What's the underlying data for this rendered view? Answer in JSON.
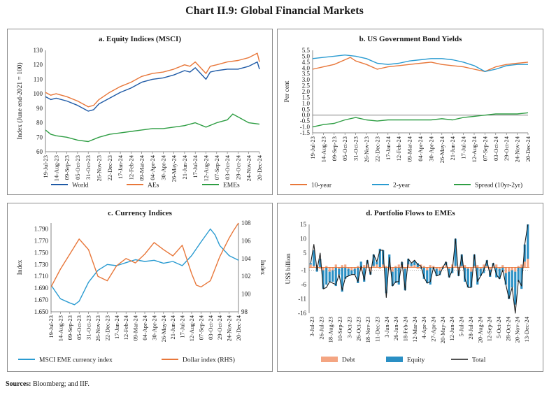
{
  "page_title": "Chart II.9: Global Financial Markets",
  "source_label": "Sources:",
  "source_text": "Bloomberg; and IIF.",
  "chart_data": [
    {
      "id": "a",
      "type": "line",
      "title": "a. Equity Indices (MSCI)",
      "ylabel": "Index (June end-2021 = 100)",
      "ylim": [
        60,
        130
      ],
      "yticks": [
        60,
        70,
        80,
        90,
        100,
        110,
        120,
        130
      ],
      "x_tick_labels": [
        "19-Jul-23",
        "14-Aug-23",
        "09-Sep-23",
        "05-Oct-23",
        "31-Oct-23",
        "26-Nov-23",
        "22-Dec-23",
        "17-Jan-24",
        "12-Feb-24",
        "09-Mar-24",
        "04-Apr-24",
        "30-Apr-24",
        "26-May-24",
        "21-Jun-24",
        "17-Jul-24",
        "12-Aug-24",
        "07-Sep-24",
        "03-Oct-24",
        "29-Oct-24",
        "24-Nov-24",
        "20-Dec-24"
      ],
      "x_range": [
        0,
        20
      ],
      "series": [
        {
          "name": "World",
          "color": "#1f5aa6",
          "x": [
            0,
            0.5,
            1,
            2,
            3,
            4,
            4.5,
            5,
            6,
            7,
            8,
            9,
            10,
            11,
            12,
            13,
            13.5,
            14,
            15,
            15.4,
            16,
            17,
            18,
            19,
            19.8,
            20
          ],
          "values": [
            98,
            96,
            97,
            95,
            92,
            88,
            89,
            93,
            97,
            101,
            104,
            108,
            110,
            111,
            113,
            116,
            115,
            118,
            110,
            115,
            116,
            117,
            117,
            119,
            122,
            117
          ]
        },
        {
          "name": "AEs",
          "color": "#e8773a",
          "x": [
            0,
            0.5,
            1,
            2,
            3,
            4,
            4.5,
            5,
            6,
            7,
            8,
            9,
            10,
            11,
            12,
            13,
            13.5,
            14,
            15,
            15.4,
            16,
            17,
            18,
            19,
            19.8,
            20
          ],
          "values": [
            101,
            99,
            100,
            98,
            95,
            91,
            92,
            96,
            101,
            105,
            108,
            112,
            114,
            115,
            117,
            120,
            119,
            122,
            114,
            119,
            120,
            122,
            123,
            125,
            128,
            122
          ]
        },
        {
          "name": "EMEs",
          "color": "#2f9e44",
          "x": [
            0,
            0.5,
            1,
            2,
            3,
            4,
            5,
            6,
            7,
            8,
            9,
            10,
            11,
            12,
            13,
            14,
            15,
            16,
            17,
            17.5,
            18,
            19,
            20
          ],
          "values": [
            75,
            72,
            71,
            70,
            68,
            67,
            70,
            72,
            73,
            74,
            75,
            76,
            76,
            77,
            78,
            80,
            77,
            80,
            82,
            86,
            84,
            80,
            79
          ]
        }
      ]
    },
    {
      "id": "b",
      "type": "line",
      "title": "b. US Government Bond Yields",
      "ylabel": "Per cent",
      "ylim": [
        -1.5,
        5.5
      ],
      "yticks": [
        -1.5,
        -1.0,
        -0.5,
        0.0,
        0.5,
        1.0,
        1.5,
        2.0,
        2.5,
        3.0,
        3.5,
        4.0,
        4.5,
        5.0,
        5.5
      ],
      "x_tick_labels": [
        "19-Jul-23",
        "14-Aug-23",
        "09-Sep-23",
        "05-Oct-23",
        "31-Oct-23",
        "26-Nov-23",
        "22-Dec-23",
        "17-Jan-24",
        "12-Feb-24",
        "09-Mar-24",
        "04-Apr-24",
        "30-Apr-24",
        "26-May-24",
        "21-Jun-24",
        "17-Jul-24",
        "12-Aug-24",
        "07-Sep-24",
        "03-Oct-24",
        "29-Oct-24",
        "24-Nov-24",
        "20-Dec-24"
      ],
      "x_range": [
        0,
        20
      ],
      "series": [
        {
          "name": "10-year",
          "color": "#e8773a",
          "x": [
            0,
            1,
            2,
            3,
            3.5,
            4,
            5,
            6,
            7,
            8,
            9,
            10,
            11,
            12,
            13,
            14,
            15,
            16,
            17,
            18,
            19,
            20
          ],
          "values": [
            3.9,
            4.1,
            4.3,
            4.7,
            4.9,
            4.6,
            4.3,
            3.9,
            4.1,
            4.2,
            4.3,
            4.4,
            4.5,
            4.3,
            4.2,
            4.1,
            3.9,
            3.7,
            4.1,
            4.3,
            4.4,
            4.5
          ]
        },
        {
          "name": "2-year",
          "color": "#2a9bd1",
          "x": [
            0,
            1,
            2,
            3,
            4,
            5,
            6,
            7,
            8,
            9,
            10,
            11,
            12,
            13,
            14,
            15,
            16,
            17,
            18,
            19,
            20
          ],
          "values": [
            4.8,
            4.9,
            5.0,
            5.1,
            5.0,
            4.8,
            4.4,
            4.3,
            4.4,
            4.6,
            4.7,
            4.8,
            4.8,
            4.7,
            4.5,
            4.2,
            3.7,
            3.9,
            4.2,
            4.3,
            4.3
          ]
        },
        {
          "name": "Spread (10yr-2yr)",
          "color": "#2f9e44",
          "x": [
            0,
            1,
            2,
            3,
            4,
            5,
            6,
            7,
            8,
            9,
            10,
            11,
            12,
            13,
            14,
            15,
            16,
            17,
            18,
            19,
            20
          ],
          "values": [
            -1.0,
            -0.8,
            -0.7,
            -0.4,
            -0.2,
            -0.4,
            -0.5,
            -0.4,
            -0.4,
            -0.4,
            -0.4,
            -0.4,
            -0.3,
            -0.4,
            -0.2,
            -0.1,
            0.0,
            0.1,
            0.1,
            0.1,
            0.2
          ]
        }
      ]
    },
    {
      "id": "c",
      "type": "line",
      "title": "c. Currency Indices",
      "ylabel": "Index",
      "y2label": "Index",
      "ylim": [
        1.65,
        1.8
      ],
      "yticks": [
        1.65,
        1.67,
        1.69,
        1.71,
        1.73,
        1.75,
        1.77,
        1.79
      ],
      "y_tick_labels": [
        "1.650",
        "1.670",
        "1.690",
        "1.710",
        "1.730",
        "1.750",
        "1.770",
        "1.790"
      ],
      "y2lim": [
        98,
        108
      ],
      "y2ticks": [
        98,
        100,
        102,
        104,
        106,
        108
      ],
      "x_tick_labels": [
        "19-Jul-23",
        "14-Aug-23",
        "09-Sep-23",
        "05-Oct-23",
        "31-Oct-23",
        "26-Nov-23",
        "22-Dec-23",
        "17-Jan-24",
        "12-Feb-24",
        "09-Mar-24",
        "04-Apr-24",
        "30-Apr-24",
        "26-May-24",
        "21-Jun-24",
        "17-Jul-24",
        "12-Aug-24",
        "07-Sep-24",
        "03-Oct-24",
        "29-Oct-24",
        "24-Nov-24",
        "20-Dec-24"
      ],
      "x_range": [
        0,
        20
      ],
      "series": [
        {
          "name": "MSCI EME currency index",
          "color": "#2a9bd1",
          "axis": "left",
          "x": [
            0,
            1,
            2,
            2.5,
            3,
            4,
            5,
            6,
            7,
            8,
            9,
            10,
            11,
            12,
            13,
            14,
            15,
            16,
            17,
            17.5,
            18,
            19,
            20
          ],
          "values": [
            1.695,
            1.672,
            1.665,
            1.662,
            1.668,
            1.7,
            1.72,
            1.73,
            1.728,
            1.733,
            1.738,
            1.735,
            1.737,
            1.732,
            1.735,
            1.728,
            1.745,
            1.768,
            1.79,
            1.78,
            1.762,
            1.745,
            1.737
          ]
        },
        {
          "name": "Dollar index (RHS)",
          "color": "#e8773a",
          "axis": "right",
          "x": [
            0,
            1,
            2,
            3,
            4,
            5,
            6,
            7,
            8,
            9,
            10,
            11,
            12,
            13,
            14,
            15,
            15.5,
            16,
            17,
            18,
            19,
            19.5,
            20
          ],
          "values": [
            100.8,
            102.8,
            104.5,
            106.2,
            105.0,
            102.0,
            101.5,
            103.2,
            104.0,
            103.5,
            104.5,
            105.8,
            105.0,
            104.3,
            105.5,
            102.3,
            101.0,
            100.8,
            101.5,
            104.2,
            106.3,
            107.2,
            108.0
          ]
        }
      ]
    },
    {
      "id": "d",
      "type": "bar",
      "title": "d. Portfolio Flows to EMEs",
      "ylabel": "US$ billion",
      "ylim": [
        -16,
        15
      ],
      "yticks": [
        -16,
        -11,
        -6,
        -1,
        5,
        10,
        15
      ],
      "x_tick_labels": [
        "3-Jul-23",
        "26-Jul-23",
        "18-Aug-23",
        "10-Sep-23",
        "3-Oct-23",
        "26-Oct-23",
        "18-Nov-23",
        "11-Dec-23",
        "3-Jan-24",
        "26-Jan-24",
        "18-Feb-24",
        "12-Mar-24",
        "4-Apr-24",
        "27-Apr-24",
        "20-May-24",
        "12-Jun-24",
        "5-Jul-24",
        "28-Jul-24",
        "20-Aug-24",
        "12-Sep-24",
        "5-Oct-24",
        "28-Oct-24",
        "20-Nov-24",
        "13-Dec-24"
      ],
      "series": [
        {
          "name": "Debt",
          "color": "#f4a582",
          "values": [
            1.0,
            0.5,
            0.8,
            -0.5,
            -1.0,
            0.5,
            -1.5,
            -1.0,
            1.0,
            -0.5,
            0.8,
            1.0,
            -0.5,
            -1.0,
            -0.5,
            0.5,
            -1.2,
            0.8,
            1.0,
            -1.5,
            0.5,
            1.0,
            -0.5,
            1.0,
            0.5,
            -0.8,
            -1.5,
            0.5,
            1.0,
            0.8,
            -0.5,
            1.0,
            0.5,
            0.8,
            -0.5,
            1.0,
            0.5,
            -1.0,
            0.8,
            0.5,
            -0.5,
            -1.2,
            0.5,
            0.8,
            -0.5,
            1.0,
            0.5,
            -1.0,
            0.5,
            0.8,
            -0.5,
            -1.5,
            0.5,
            0.8,
            -0.5,
            1.0,
            0.5,
            -0.8,
            0.5,
            1.0,
            -0.5,
            0.8,
            -2.0,
            -1.5,
            -1.0,
            -1.5,
            0.5,
            1.0,
            2.0,
            3.0
          ]
        },
        {
          "name": "Equity",
          "color": "#2a8fc4",
          "values": [
            0.5,
            5.5,
            -1.5,
            3.0,
            -6.5,
            -6.0,
            -3.5,
            -4.0,
            -6.5,
            -2.0,
            -8.5,
            -4.0,
            -2.5,
            -1.5,
            -2.0,
            -5.5,
            2.0,
            -5.0,
            1.5,
            -1.0,
            4.0,
            1.0,
            6.5,
            5.0,
            -9.0,
            4.5,
            -5.0,
            -5.5,
            -6.0,
            1.0,
            -7.5,
            2.0,
            1.0,
            1.5,
            1.5,
            -0.5,
            -4.0,
            -4.5,
            -6.0,
            -0.5,
            -2.5,
            -1.5,
            -0.5,
            1.0,
            -3.0,
            -2.0,
            9.5,
            -2.0,
            4.0,
            -5.0,
            -6.5,
            -5.5,
            4.0,
            -6.0,
            -2.5,
            -2.0,
            2.0,
            -2.5,
            1.0,
            -3.5,
            -3.5,
            -1.5,
            -4.0,
            -9.5,
            -6.0,
            -11.5,
            -5.0,
            -7.5,
            6.0,
            12.0
          ]
        },
        {
          "name": "Total",
          "color": "#1a1a1a",
          "values": [
            1.5,
            8.0,
            -1.0,
            5.0,
            -7.5,
            -7.0,
            -5.0,
            -5.5,
            -6.0,
            -2.5,
            -8.0,
            -3.5,
            -3.0,
            -2.5,
            -2.5,
            -5.0,
            0.5,
            -4.5,
            2.5,
            -2.5,
            4.5,
            2.0,
            6.0,
            6.0,
            -10.5,
            3.5,
            -6.5,
            -5.0,
            -5.0,
            2.0,
            -8.0,
            3.0,
            1.5,
            2.5,
            1.0,
            0.5,
            -3.5,
            -5.5,
            -5.0,
            0.0,
            -3.0,
            -2.5,
            0.0,
            2.0,
            -3.5,
            -1.0,
            10.0,
            -3.0,
            4.5,
            -4.0,
            -7.0,
            -7.0,
            4.5,
            -5.0,
            -3.0,
            -1.0,
            2.5,
            -3.0,
            1.5,
            -2.5,
            -4.0,
            -1.0,
            -6.0,
            -11.0,
            -7.0,
            -16.0,
            -4.5,
            -6.5,
            8.0,
            15.0
          ]
        }
      ]
    }
  ]
}
